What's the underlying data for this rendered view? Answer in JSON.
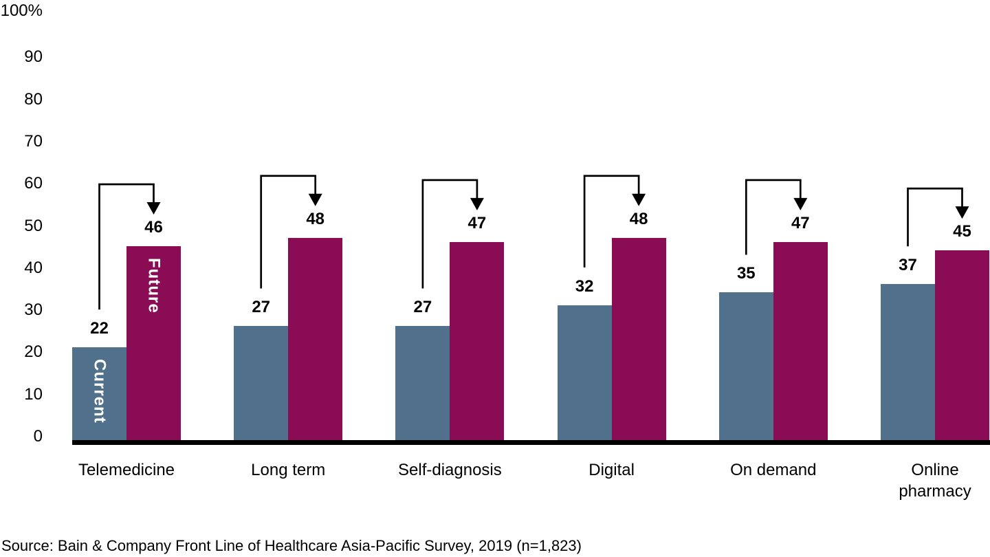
{
  "chart_data": {
    "type": "bar",
    "title": "",
    "xlabel": "",
    "ylabel": "",
    "ylim": [
      0,
      100
    ],
    "grid": false,
    "legend_position": "labels-inside-first-bar-group",
    "categories": [
      "Telemedicine",
      "Long term",
      "Self-diagnosis",
      "Digital",
      "On demand",
      "Online pharmacy"
    ],
    "series": [
      {
        "name": "Current",
        "color": "#50708B",
        "values": [
          22,
          27,
          27,
          32,
          35,
          37
        ]
      },
      {
        "name": "Future",
        "color": "#8A0C55",
        "values": [
          46,
          48,
          47,
          48,
          47,
          45
        ]
      }
    ],
    "y_ticks": [
      {
        "value": 100,
        "label": "100%"
      },
      {
        "value": 90,
        "label": "90"
      },
      {
        "value": 80,
        "label": "80"
      },
      {
        "value": 70,
        "label": "70"
      },
      {
        "value": 60,
        "label": "60"
      },
      {
        "value": 50,
        "label": "50"
      },
      {
        "value": 40,
        "label": "40"
      },
      {
        "value": 30,
        "label": "30"
      },
      {
        "value": 20,
        "label": "20"
      },
      {
        "value": 10,
        "label": "10"
      },
      {
        "value": 0,
        "label": "0"
      }
    ],
    "annotations": {
      "type": "step-arrow-per-group",
      "description": "Black elbow arrow from top of Current bar pointing down onto Future bar value in every category group",
      "from_series": "Current",
      "to_series": "Future"
    }
  },
  "colors": {
    "current_bar": "#50708B",
    "future_bar": "#8A0C55",
    "axis_line": "#000000",
    "text": "#000000",
    "inbar_label_text": "#FFFFFF",
    "background": "#FFFFFF"
  },
  "source_note": "Source: Bain & Company Front Line of Healthcare Asia-Pacific Survey, 2019 (n=1,823)"
}
